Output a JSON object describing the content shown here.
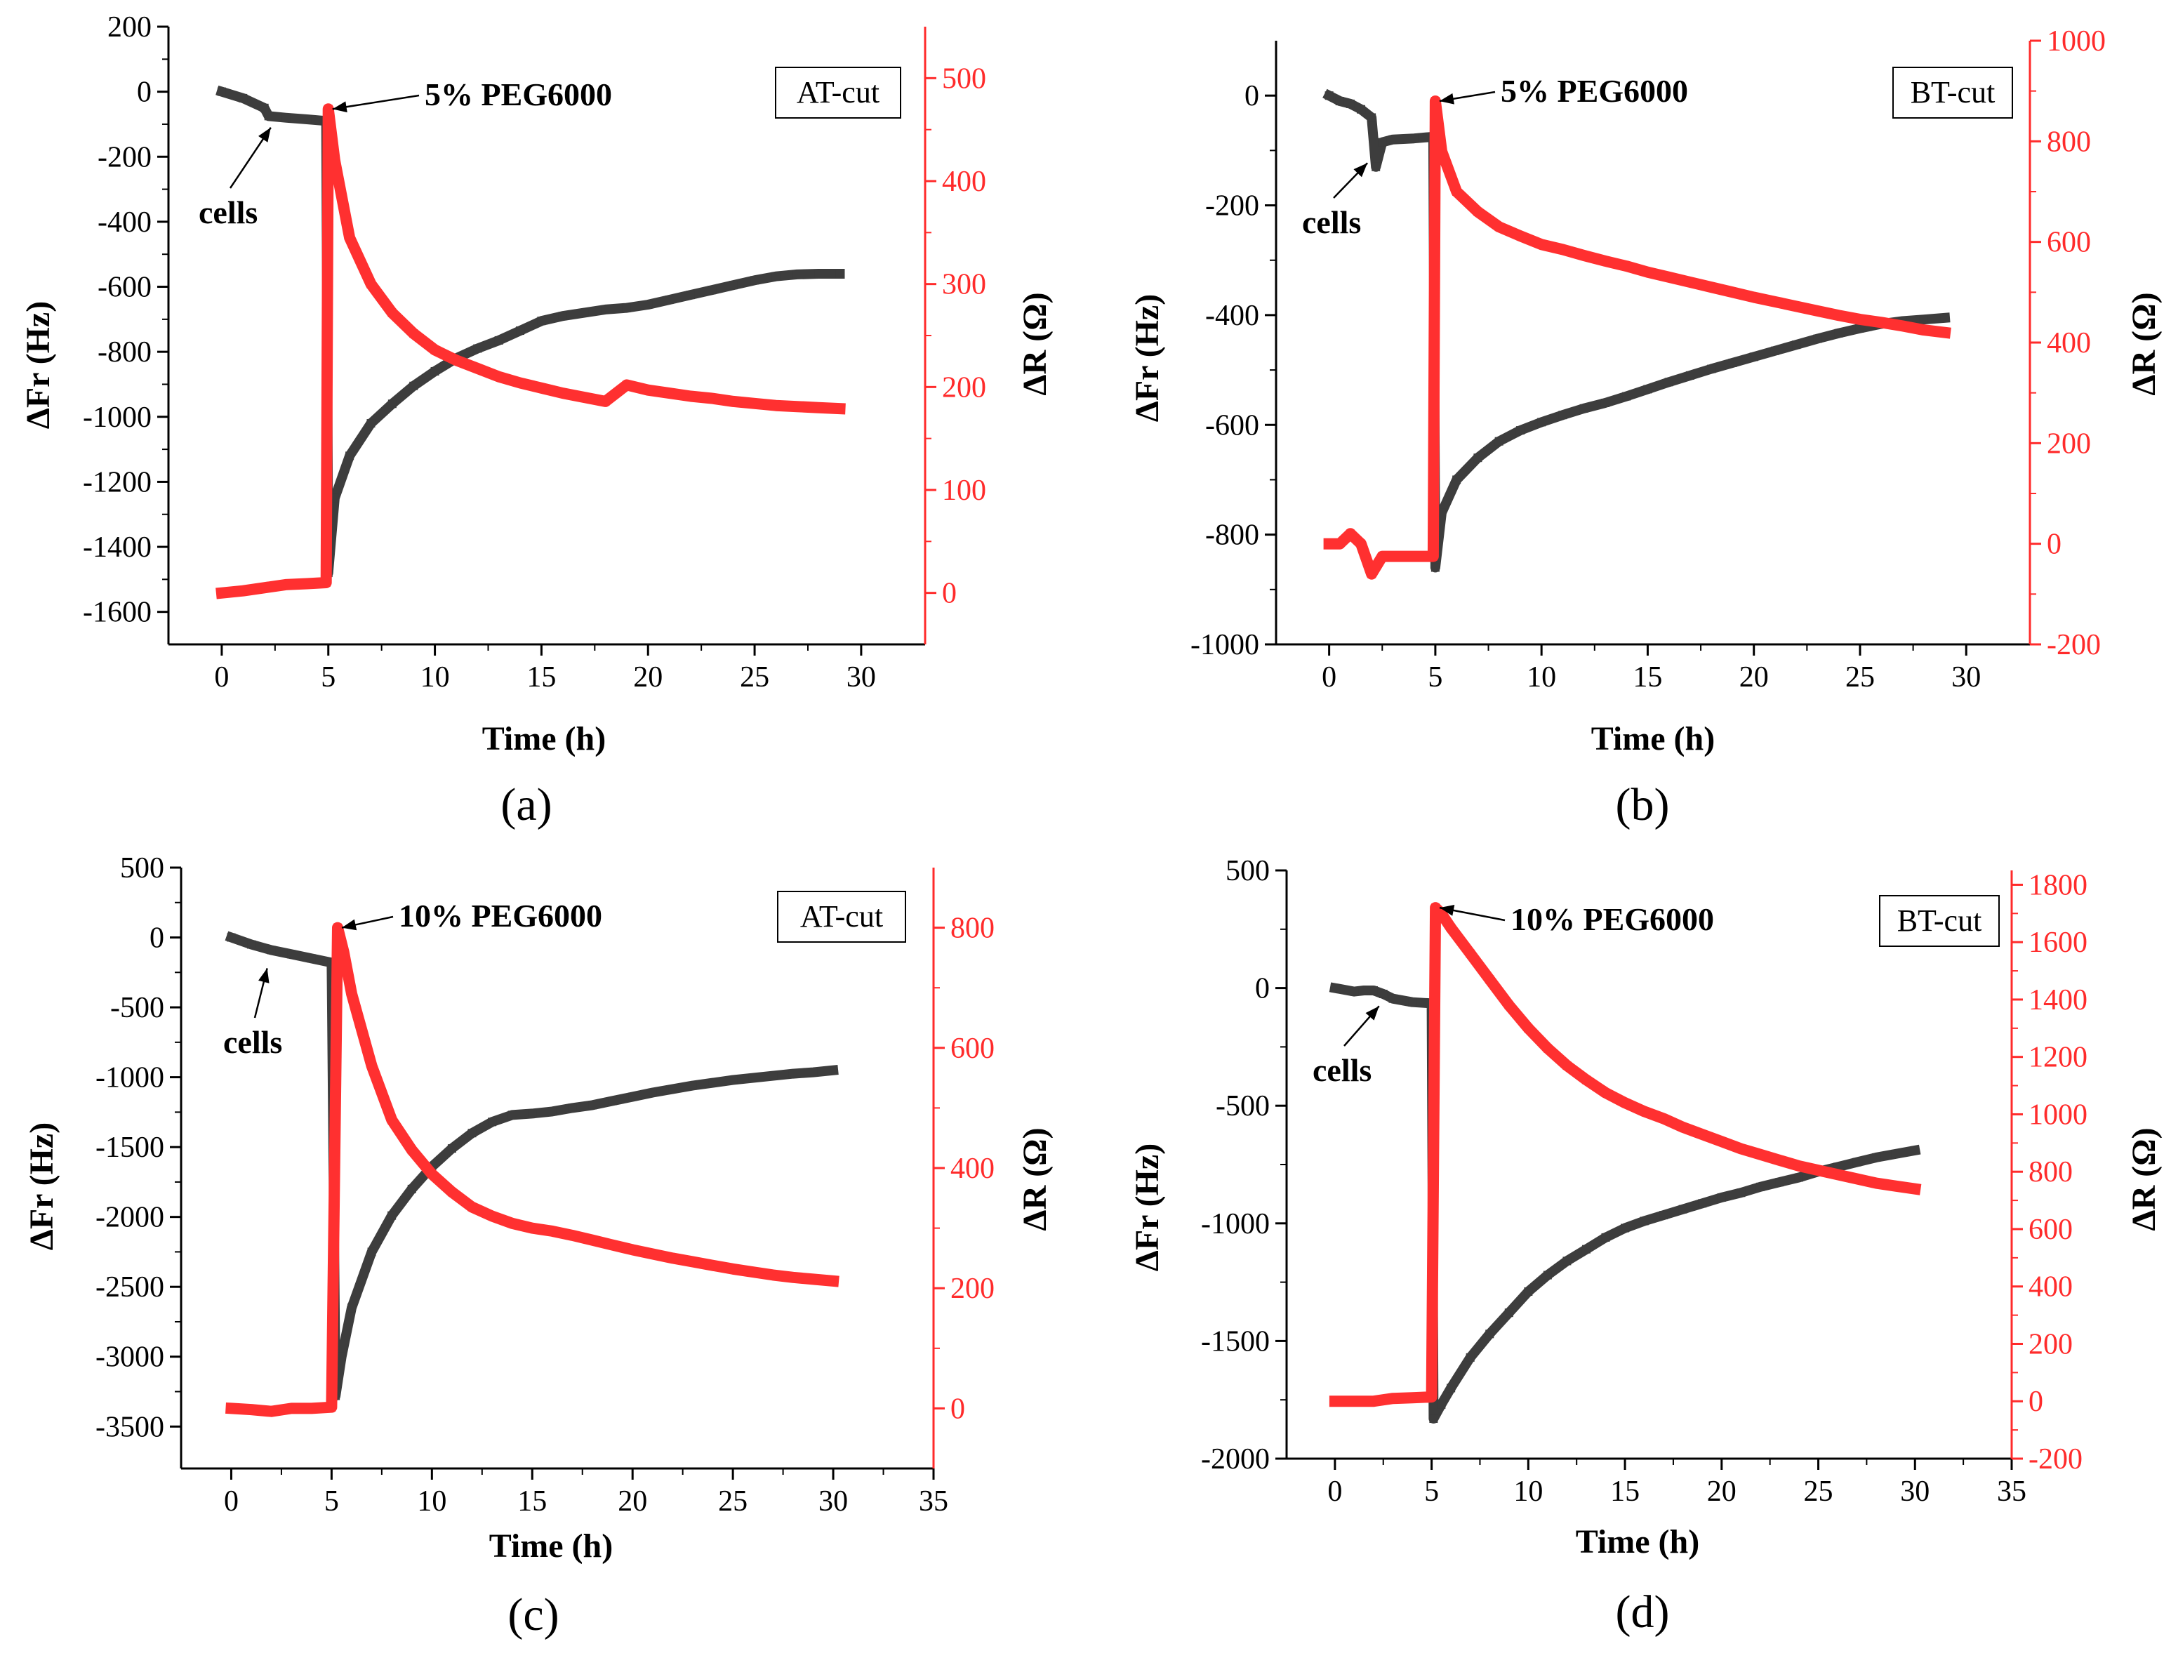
{
  "chart_data": [
    {
      "type": "line",
      "panel_label": "(a)",
      "cut_label": "AT-cut",
      "xlabel": "Time (h)",
      "ylabel_left": "ΔFr (Hz)",
      "ylabel_right": "ΔR (Ω)",
      "xlim": [
        -2.5,
        33
      ],
      "x_ticks": [
        0,
        5,
        10,
        15,
        20,
        25,
        30
      ],
      "ylim_left": [
        -1700,
        200
      ],
      "y_ticks_left": [
        -1600,
        -1400,
        -1200,
        -1000,
        -800,
        -600,
        -400,
        -200,
        0,
        200
      ],
      "ylim_right": [
        -50,
        550
      ],
      "y_ticks_right": [
        0,
        100,
        200,
        300,
        400,
        500
      ],
      "cells_label": "cells",
      "cells_point": [
        2.5,
        -80
      ],
      "injection_label": "5% PEG6000",
      "injection_point": [
        5,
        470
      ],
      "injection_time": 5,
      "series": [
        {
          "name": "ΔFr",
          "axis": "left",
          "color": "#3d3d3d",
          "x": [
            0,
            1,
            2,
            2.2,
            3,
            4,
            4.9,
            5.0,
            5.3,
            6,
            7,
            8,
            9,
            10,
            11,
            12,
            13,
            14,
            15,
            16,
            17,
            18,
            19,
            20,
            21,
            22,
            23,
            24,
            25,
            26,
            27,
            28,
            29
          ],
          "y": [
            0,
            -20,
            -50,
            -75,
            -80,
            -85,
            -90,
            -1480,
            -1250,
            -1120,
            -1020,
            -960,
            -905,
            -860,
            -820,
            -790,
            -765,
            -735,
            -705,
            -690,
            -680,
            -670,
            -665,
            -655,
            -640,
            -625,
            -610,
            -595,
            -580,
            -568,
            -562,
            -560,
            -560
          ]
        },
        {
          "name": "ΔR",
          "axis": "right",
          "color": "#ff3030",
          "x": [
            0,
            1,
            2,
            3,
            4,
            4.9,
            5.0,
            5.3,
            6,
            7,
            8,
            9,
            10,
            11,
            12,
            13,
            14,
            15,
            16,
            17,
            18,
            19,
            20,
            21,
            22,
            23,
            24,
            25,
            26,
            27,
            28,
            29
          ],
          "y": [
            0,
            2,
            5,
            8,
            9,
            10,
            470,
            420,
            345,
            300,
            272,
            252,
            236,
            226,
            218,
            210,
            204,
            199,
            194,
            190,
            186,
            202,
            197,
            194,
            191,
            189,
            186,
            184,
            182,
            181,
            180,
            179
          ]
        }
      ]
    },
    {
      "type": "line",
      "panel_label": "(b)",
      "cut_label": "BT-cut",
      "xlabel": "Time (h)",
      "ylabel_left": "ΔFr (Hz)",
      "ylabel_right": "ΔR (Ω)",
      "xlim": [
        -2.5,
        33
      ],
      "x_ticks": [
        0,
        5,
        10,
        15,
        20,
        25,
        30
      ],
      "ylim_left": [
        -1000,
        100
      ],
      "y_ticks_left": [
        -1000,
        -800,
        -600,
        -400,
        -200,
        0
      ],
      "ylim_right": [
        -200,
        1000
      ],
      "y_ticks_right": [
        -200,
        0,
        200,
        400,
        600,
        800,
        1000
      ],
      "cells_label": "cells",
      "cells_point": [
        2.0,
        -105
      ],
      "injection_label": "5% PEG6000",
      "injection_point": [
        5,
        880
      ],
      "injection_time": 5,
      "series": [
        {
          "name": "ΔFr",
          "axis": "left",
          "color": "#3d3d3d",
          "x": [
            0,
            0.5,
            1,
            1.5,
            2,
            2.2,
            2.5,
            3,
            4,
            4.9,
            5.0,
            5.3,
            6,
            7,
            8,
            9,
            10,
            11,
            12,
            13,
            14,
            15,
            16,
            17,
            18,
            19,
            20,
            21,
            22,
            23,
            24,
            25,
            26,
            27,
            28,
            29
          ],
          "y": [
            0,
            -10,
            -15,
            -25,
            -40,
            -130,
            -85,
            -80,
            -78,
            -75,
            -860,
            -760,
            -700,
            -660,
            -630,
            -610,
            -595,
            -582,
            -570,
            -560,
            -548,
            -535,
            -522,
            -510,
            -498,
            -487,
            -476,
            -465,
            -454,
            -443,
            -433,
            -424,
            -416,
            -411,
            -408,
            -405
          ]
        },
        {
          "name": "ΔR",
          "axis": "right",
          "color": "#ff3030",
          "x": [
            0,
            0.5,
            1,
            1.5,
            2,
            2.5,
            3,
            4,
            4.9,
            5.0,
            5.3,
            6,
            7,
            8,
            9,
            10,
            11,
            12,
            13,
            14,
            15,
            16,
            17,
            18,
            19,
            20,
            21,
            22,
            23,
            24,
            25,
            26,
            27,
            28,
            29
          ],
          "y": [
            0,
            0,
            20,
            0,
            -60,
            -25,
            -25,
            -25,
            -25,
            880,
            780,
            700,
            660,
            630,
            612,
            595,
            585,
            573,
            562,
            552,
            540,
            530,
            520,
            510,
            500,
            490,
            481,
            472,
            463,
            454,
            446,
            440,
            433,
            425,
            420
          ]
        }
      ]
    },
    {
      "type": "line",
      "panel_label": "(c)",
      "cut_label": "AT-cut",
      "xlabel": "Time (h)",
      "ylabel_left": "ΔFr (Hz)",
      "ylabel_right": "ΔR (Ω)",
      "xlim": [
        -2.5,
        35
      ],
      "x_ticks": [
        0,
        5,
        10,
        15,
        20,
        25,
        30,
        35
      ],
      "ylim_left": [
        -3800,
        500
      ],
      "y_ticks_left": [
        -3500,
        -3000,
        -2500,
        -2000,
        -1500,
        -1000,
        -500,
        0,
        500
      ],
      "ylim_right": [
        -100,
        900
      ],
      "y_ticks_right": [
        0,
        200,
        400,
        600,
        800
      ],
      "cells_label": "cells",
      "cells_point": [
        2.0,
        -150
      ],
      "injection_label": "10% PEG6000",
      "injection_point": [
        5.3,
        800
      ],
      "injection_time": 5.2,
      "series": [
        {
          "name": "ΔFr",
          "axis": "left",
          "color": "#3d3d3d",
          "x": [
            0,
            1,
            2,
            3,
            4,
            5,
            5.2,
            5.5,
            6,
            7,
            8,
            9,
            10,
            11,
            12,
            13,
            14,
            15,
            16,
            17,
            18,
            19,
            20,
            21,
            22,
            23,
            24,
            25,
            26,
            27,
            28,
            29,
            30
          ],
          "y": [
            0,
            -50,
            -90,
            -120,
            -150,
            -180,
            -3280,
            -3000,
            -2650,
            -2250,
            -1990,
            -1800,
            -1640,
            -1510,
            -1400,
            -1320,
            -1270,
            -1260,
            -1245,
            -1220,
            -1200,
            -1170,
            -1140,
            -1110,
            -1085,
            -1060,
            -1040,
            -1020,
            -1005,
            -990,
            -975,
            -965,
            -950
          ]
        },
        {
          "name": "ΔR",
          "axis": "right",
          "color": "#ff3030",
          "x": [
            0,
            1,
            2,
            3,
            4,
            5,
            5.3,
            5.6,
            6,
            7,
            8,
            9,
            10,
            11,
            12,
            13,
            14,
            15,
            16,
            17,
            18,
            19,
            20,
            21,
            22,
            23,
            24,
            25,
            26,
            27,
            28,
            29,
            30
          ],
          "y": [
            0,
            -2,
            -5,
            0,
            0,
            2,
            800,
            760,
            690,
            570,
            480,
            430,
            390,
            360,
            335,
            320,
            308,
            300,
            295,
            288,
            280,
            272,
            264,
            257,
            250,
            244,
            238,
            232,
            227,
            222,
            218,
            215,
            212
          ]
        }
      ]
    },
    {
      "type": "line",
      "panel_label": "(d)",
      "cut_label": "BT-cut",
      "xlabel": "Time (h)",
      "ylabel_left": "ΔFr (Hz)",
      "ylabel_right": "ΔR (Ω)",
      "xlim": [
        -2.5,
        35
      ],
      "x_ticks": [
        0,
        5,
        10,
        15,
        20,
        25,
        30,
        35
      ],
      "ylim_left": [
        -2000,
        500
      ],
      "y_ticks_left": [
        -2000,
        -1500,
        -1000,
        -500,
        0,
        500
      ],
      "ylim_right": [
        -200,
        1850
      ],
      "y_ticks_right": [
        -200,
        0,
        200,
        400,
        600,
        800,
        1000,
        1200,
        1400,
        1600,
        1800
      ],
      "cells_label": "cells",
      "cells_point": [
        2.5,
        -35
      ],
      "injection_label": "10% PEG6000",
      "injection_point": [
        5.2,
        1720
      ],
      "injection_time": 5.1,
      "series": [
        {
          "name": "ΔFr",
          "axis": "left",
          "color": "#3d3d3d",
          "x": [
            0,
            1,
            1.5,
            2,
            2.5,
            3,
            4,
            5,
            5.1,
            5.5,
            6,
            7,
            8,
            9,
            10,
            11,
            12,
            13,
            14,
            15,
            16,
            17,
            18,
            19,
            20,
            21,
            22,
            23,
            24,
            25,
            26,
            27,
            28,
            29,
            30
          ],
          "y": [
            0,
            -15,
            -10,
            -10,
            -25,
            -45,
            -60,
            -65,
            -1830,
            -1770,
            -1700,
            -1570,
            -1470,
            -1380,
            -1290,
            -1220,
            -1160,
            -1110,
            -1060,
            -1020,
            -990,
            -965,
            -940,
            -915,
            -890,
            -870,
            -845,
            -825,
            -805,
            -780,
            -760,
            -740,
            -720,
            -705,
            -690
          ]
        },
        {
          "name": "ΔR",
          "axis": "right",
          "color": "#ff3030",
          "x": [
            0,
            1,
            2,
            2.5,
            3,
            4,
            5,
            5.2,
            5.5,
            6,
            7,
            8,
            9,
            10,
            11,
            12,
            13,
            14,
            15,
            16,
            17,
            18,
            19,
            20,
            21,
            22,
            23,
            24,
            25,
            26,
            27,
            28,
            29,
            30
          ],
          "y": [
            0,
            0,
            0,
            5,
            10,
            12,
            15,
            1720,
            1700,
            1650,
            1560,
            1470,
            1380,
            1300,
            1230,
            1170,
            1120,
            1075,
            1040,
            1010,
            985,
            955,
            930,
            905,
            880,
            860,
            840,
            820,
            805,
            790,
            775,
            760,
            750,
            740
          ]
        }
      ]
    }
  ]
}
